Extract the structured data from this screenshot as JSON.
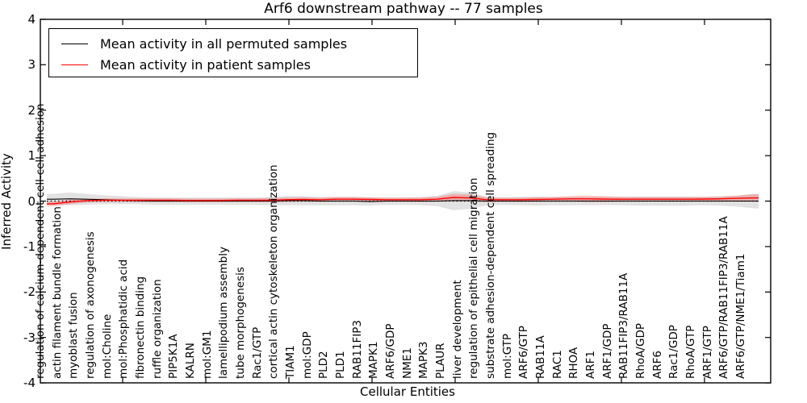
{
  "figure": {
    "title": "Arf6 downstream pathway -- 77 samples",
    "xlabel": "Cellular Entities",
    "ylabel": "Inferred Activity"
  },
  "legend": {
    "items": [
      {
        "label": "Mean activity in all permuted samples",
        "color": "#000000"
      },
      {
        "label": "Mean activity in patient samples",
        "color": "#ff0000"
      }
    ]
  },
  "chart_data": {
    "type": "line",
    "title": "Arf6 downstream pathway -- 77 samples",
    "xlabel": "Cellular Entities",
    "ylabel": "Inferred Activity",
    "ylim": [
      -4,
      4
    ],
    "ytick_labels": [
      "4",
      "3",
      "2",
      "1",
      "0",
      "-1",
      "-2",
      "-3",
      "-4"
    ],
    "ytick_values": [
      4,
      3,
      2,
      1,
      0,
      -1,
      -2,
      -3,
      -4
    ],
    "grid": false,
    "legend_position": "upper left",
    "zero_line": {
      "value": 0,
      "style": "dotted",
      "color": "#000000"
    },
    "categories": [
      "regulation of calcium-dependent cell-cell adhesion",
      "actin filament bundle formation",
      "myoblast fusion",
      "regulation of axonogenesis",
      "mol:Choline",
      "mol:Phosphatidic acid",
      "fibronectin binding",
      "ruffle organization",
      "PIP5K1A",
      "KALRN",
      "mol:GM1",
      "lamellipodium assembly",
      "tube morphogenesis",
      "Rac1/GTP",
      "cortical actin cytoskeleton organization",
      "TIAM1",
      "mol:GDP",
      "PLD2",
      "PLD1",
      "RAB11FIP3",
      "MAPK1",
      "ARF6/GDP",
      "NME1",
      "MAPK3",
      "PLAUR",
      "liver development",
      "regulation of epithelial cell migration",
      "substrate adhesion-dependent cell spreading",
      "mol:GTP",
      "ARF6/GTP",
      "RAB11A",
      "RAC1",
      "RHOA",
      "ARF1",
      "ARF1/GDP",
      "RAB11FIP3/RAB11A",
      "RhoA/GDP",
      "ARF6",
      "Rac1/GDP",
      "RhoA/GTP",
      "ARF1/GTP",
      "ARF6/GTP/RAB11FIP3/RAB11A",
      "ARF6/GTP/NME1/Tiam1"
    ],
    "series": [
      {
        "name": "Mean activity in all permuted samples",
        "color": "#000000",
        "band_color": "#d2d2d2",
        "band_opacity": 0.65,
        "values": [
          0.04,
          0.05,
          0.04,
          0.03,
          0.02,
          0.01,
          0.0,
          0.0,
          0.0,
          0.0,
          0.0,
          0.0,
          0.0,
          0.0,
          0.01,
          0.01,
          0.0,
          0.0,
          0.0,
          -0.01,
          0.0,
          0.0,
          0.0,
          0.0,
          0.01,
          0.01,
          0.0,
          0.0,
          0.0,
          0.0,
          0.0,
          0.0,
          0.0,
          0.0,
          0.0,
          0.0,
          0.0,
          0.0,
          0.0,
          0.0,
          0.0,
          0.0,
          0.0
        ],
        "std": [
          0.12,
          0.14,
          0.12,
          0.1,
          0.09,
          0.08,
          0.08,
          0.08,
          0.08,
          0.08,
          0.08,
          0.08,
          0.08,
          0.09,
          0.1,
          0.1,
          0.09,
          0.09,
          0.09,
          0.09,
          0.08,
          0.08,
          0.09,
          0.11,
          0.21,
          0.18,
          0.09,
          0.08,
          0.09,
          0.1,
          0.09,
          0.09,
          0.09,
          0.09,
          0.09,
          0.1,
          0.1,
          0.1,
          0.1,
          0.09,
          0.1,
          0.12,
          0.16
        ]
      },
      {
        "name": "Mean activity in patient samples",
        "color": "#ff0000",
        "band_color": "#ff0000",
        "band_opacity": 0.22,
        "values": [
          -0.06,
          -0.02,
          0.01,
          0.02,
          0.02,
          0.02,
          0.02,
          0.02,
          0.015,
          0.015,
          0.015,
          0.02,
          0.02,
          0.02,
          0.03,
          0.035,
          0.03,
          0.04,
          0.04,
          0.035,
          0.03,
          0.03,
          0.03,
          0.04,
          0.08,
          0.07,
          0.03,
          0.03,
          0.03,
          0.035,
          0.04,
          0.05,
          0.05,
          0.045,
          0.04,
          0.04,
          0.04,
          0.04,
          0.04,
          0.045,
          0.05,
          0.06,
          0.07
        ],
        "std": [
          0.05,
          0.05,
          0.04,
          0.04,
          0.04,
          0.04,
          0.04,
          0.04,
          0.04,
          0.04,
          0.04,
          0.04,
          0.04,
          0.045,
          0.05,
          0.05,
          0.045,
          0.05,
          0.05,
          0.05,
          0.045,
          0.045,
          0.05,
          0.055,
          0.08,
          0.075,
          0.05,
          0.045,
          0.05,
          0.05,
          0.05,
          0.06,
          0.07,
          0.065,
          0.055,
          0.05,
          0.05,
          0.05,
          0.05,
          0.05,
          0.055,
          0.06,
          0.08
        ]
      }
    ]
  }
}
